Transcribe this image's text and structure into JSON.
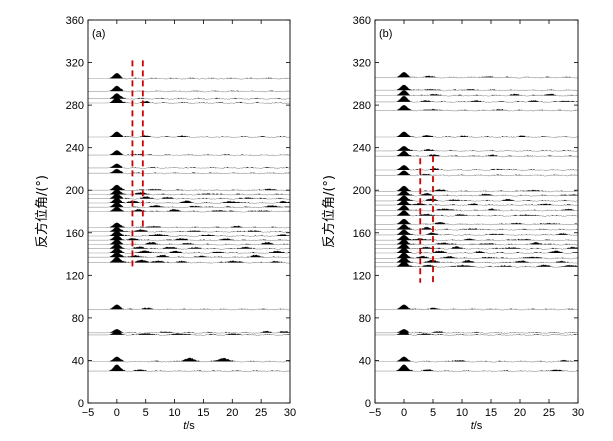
{
  "chart_data": [
    {
      "type": "line",
      "panel_label": "(a)",
      "xlabel": "t/s",
      "ylabel": "反方位角/(°)",
      "xlim": [
        -5,
        30
      ],
      "ylim": [
        0,
        360
      ],
      "xticks": [
        -5,
        0,
        5,
        10,
        15,
        20,
        25,
        30
      ],
      "yticks": [
        0,
        40,
        80,
        120,
        160,
        200,
        240,
        280,
        320,
        360
      ],
      "traces": [
        {
          "baz": 30,
          "events": [
            [
              0,
              11
            ],
            [
              4,
              2
            ]
          ]
        },
        {
          "baz": 39,
          "events": [
            [
              0,
              8
            ],
            [
              12.5,
              6
            ],
            [
              18.5,
              6
            ]
          ]
        },
        {
          "baz": 64,
          "events": [
            [
              0,
              7
            ],
            [
              5,
              2.5
            ],
            [
              11,
              2.5
            ],
            [
              20.5,
              2
            ]
          ]
        },
        {
          "baz": 66,
          "events": [
            [
              0,
              6
            ],
            [
              8,
              2
            ],
            [
              26,
              2
            ],
            [
              29,
              2
            ]
          ]
        },
        {
          "baz": 88,
          "events": [
            [
              0,
              8
            ],
            [
              5,
              2
            ]
          ]
        },
        {
          "baz": 132,
          "events": [
            [
              0,
              10
            ],
            [
              4,
              4
            ],
            [
              7,
              3
            ],
            [
              11,
              2
            ],
            [
              20,
              3
            ],
            [
              27,
              2
            ]
          ]
        },
        {
          "baz": 137,
          "events": [
            [
              0,
              9
            ],
            [
              3,
              3
            ],
            [
              8,
              3
            ],
            [
              15,
              2
            ],
            [
              24,
              3
            ]
          ]
        },
        {
          "baz": 141,
          "events": [
            [
              0,
              9
            ],
            [
              5,
              4
            ],
            [
              10,
              3
            ],
            [
              18,
              2
            ],
            [
              28,
              3
            ]
          ]
        },
        {
          "baz": 145,
          "events": [
            [
              0,
              9
            ],
            [
              4,
              3
            ],
            [
              9,
              3
            ],
            [
              14,
              2
            ],
            [
              22,
              3
            ]
          ]
        },
        {
          "baz": 149,
          "events": [
            [
              0,
              9
            ],
            [
              6,
              3
            ],
            [
              12,
              2
            ],
            [
              26,
              3
            ]
          ]
        },
        {
          "baz": 153,
          "events": [
            [
              0,
              9
            ],
            [
              3,
              3
            ],
            [
              11,
              3
            ],
            [
              19,
              2
            ]
          ]
        },
        {
          "baz": 157,
          "events": [
            [
              0,
              9
            ],
            [
              7,
              3
            ],
            [
              16,
              2
            ],
            [
              29,
              2
            ]
          ]
        },
        {
          "baz": 161,
          "events": [
            [
              0,
              8
            ],
            [
              4,
              3
            ],
            [
              13,
              2
            ],
            [
              23,
              2
            ]
          ]
        },
        {
          "baz": 165,
          "events": [
            [
              0,
              8
            ],
            [
              6,
              2
            ],
            [
              21,
              2
            ]
          ]
        },
        {
          "baz": 180,
          "events": [
            [
              0,
              8
            ],
            [
              4,
              3
            ],
            [
              10,
              3
            ],
            [
              18,
              2
            ],
            [
              25,
              2
            ]
          ]
        },
        {
          "baz": 184,
          "events": [
            [
              0,
              9
            ],
            [
              7,
              3
            ],
            [
              14,
              2
            ],
            [
              27,
              3
            ]
          ]
        },
        {
          "baz": 188,
          "events": [
            [
              0,
              9
            ],
            [
              3,
              3
            ],
            [
              12,
              3
            ],
            [
              20,
              3
            ],
            [
              29,
              2
            ]
          ]
        },
        {
          "baz": 192,
          "events": [
            [
              0,
              9
            ],
            [
              5,
              3
            ],
            [
              9,
              2
            ],
            [
              23,
              2
            ]
          ]
        },
        {
          "baz": 196,
          "events": [
            [
              0,
              9
            ],
            [
              4,
              3
            ],
            [
              16,
              2
            ]
          ]
        },
        {
          "baz": 200,
          "events": [
            [
              0,
              9
            ],
            [
              6,
              2
            ],
            [
              26,
              2
            ]
          ]
        },
        {
          "baz": 216,
          "events": [
            [
              0,
              7
            ]
          ]
        },
        {
          "baz": 221,
          "events": [
            [
              0,
              7
            ]
          ]
        },
        {
          "baz": 233,
          "events": [
            [
              0,
              8
            ],
            [
              4,
              1.5
            ]
          ]
        },
        {
          "baz": 250,
          "events": [
            [
              0,
              9
            ],
            [
              5,
              2
            ],
            [
              11,
              1.5
            ]
          ]
        },
        {
          "baz": 282,
          "events": [
            [
              0,
              10
            ],
            [
              5,
              2
            ]
          ]
        },
        {
          "baz": 286,
          "events": [
            [
              0,
              9
            ]
          ]
        },
        {
          "baz": 293,
          "events": [
            [
              0,
              9
            ]
          ]
        },
        {
          "baz": 305,
          "events": [
            [
              0,
              9
            ]
          ]
        }
      ],
      "marker_lines": [
        {
          "t": 2.7,
          "baz_min": 128,
          "baz_max": 322
        },
        {
          "t": 4.5,
          "baz_min": 162,
          "baz_max": 322
        }
      ],
      "colors": {
        "trace_fill": "#000000",
        "trace_line": "#9a9a9a",
        "marker": "#cc0000"
      }
    },
    {
      "type": "line",
      "panel_label": "(b)",
      "xlabel": "t/s",
      "ylabel": "反方位角/(°)",
      "xlim": [
        -5,
        30
      ],
      "ylim": [
        0,
        360
      ],
      "xticks": [
        -5,
        0,
        5,
        10,
        15,
        20,
        25,
        30
      ],
      "yticks": [
        0,
        40,
        80,
        120,
        160,
        200,
        240,
        280,
        320,
        360
      ],
      "traces": [
        {
          "baz": 30,
          "events": [
            [
              0,
              11
            ],
            [
              4,
              2
            ],
            [
              26,
              2
            ]
          ]
        },
        {
          "baz": 39,
          "events": [
            [
              0,
              8
            ],
            [
              9,
              2
            ],
            [
              28,
              2
            ]
          ]
        },
        {
          "baz": 64,
          "events": [
            [
              0,
              7
            ],
            [
              4,
              2
            ]
          ]
        },
        {
          "baz": 66,
          "events": [
            [
              0,
              6
            ],
            [
              6,
              1.5
            ]
          ]
        },
        {
          "baz": 88,
          "events": [
            [
              0,
              8
            ],
            [
              5,
              2
            ]
          ]
        },
        {
          "baz": 128,
          "events": [
            [
              0,
              10
            ],
            [
              4,
              3
            ],
            [
              10,
              3
            ],
            [
              17,
              2
            ],
            [
              24,
              3
            ],
            [
              29,
              3
            ]
          ]
        },
        {
          "baz": 132,
          "events": [
            [
              0,
              10
            ],
            [
              5,
              4
            ],
            [
              11,
              3
            ],
            [
              20,
              3
            ],
            [
              27,
              2
            ]
          ]
        },
        {
          "baz": 136,
          "events": [
            [
              0,
              10
            ],
            [
              3,
              3
            ],
            [
              8,
              3
            ],
            [
              15,
              2
            ],
            [
              22,
              3
            ]
          ]
        },
        {
          "baz": 141,
          "events": [
            [
              0,
              9
            ],
            [
              6,
              3
            ],
            [
              13,
              2
            ],
            [
              26,
              3
            ]
          ]
        },
        {
          "baz": 145,
          "events": [
            [
              0,
              9
            ],
            [
              4,
              3
            ],
            [
              9,
              3
            ],
            [
              18,
              2
            ],
            [
              29,
              2
            ]
          ]
        },
        {
          "baz": 149,
          "events": [
            [
              0,
              9
            ],
            [
              7,
              3
            ],
            [
              14,
              2
            ],
            [
              23,
              3
            ]
          ]
        },
        {
          "baz": 153,
          "events": [
            [
              0,
              9
            ],
            [
              3,
              3
            ],
            [
              11,
              2
            ],
            [
              20,
              2
            ]
          ]
        },
        {
          "baz": 158,
          "events": [
            [
              0,
              9
            ],
            [
              5,
              3
            ],
            [
              16,
              2
            ],
            [
              27,
              2
            ]
          ]
        },
        {
          "baz": 163,
          "events": [
            [
              0,
              9
            ],
            [
              4,
              3
            ],
            [
              12,
              2
            ]
          ]
        },
        {
          "baz": 168,
          "events": [
            [
              0,
              9
            ],
            [
              6,
              3
            ],
            [
              19,
              2
            ],
            [
              25,
              2
            ]
          ]
        },
        {
          "baz": 176,
          "events": [
            [
              0,
              9
            ],
            [
              4,
              3
            ],
            [
              10,
              2
            ],
            [
              21,
              2
            ]
          ]
        },
        {
          "baz": 181,
          "events": [
            [
              0,
              9
            ],
            [
              7,
              3
            ],
            [
              15,
              2
            ],
            [
              28,
              2
            ]
          ]
        },
        {
          "baz": 186,
          "events": [
            [
              0,
              9
            ],
            [
              3,
              3
            ],
            [
              12,
              2
            ],
            [
              24,
              2
            ]
          ]
        },
        {
          "baz": 190,
          "events": [
            [
              0,
              9
            ],
            [
              5,
              3
            ],
            [
              9,
              2
            ],
            [
              18,
              2
            ]
          ]
        },
        {
          "baz": 195,
          "events": [
            [
              0,
              9
            ],
            [
              4,
              3
            ],
            [
              14,
              2
            ],
            [
              29,
              2
            ]
          ]
        },
        {
          "baz": 199,
          "events": [
            [
              0,
              9
            ],
            [
              6,
              3
            ],
            [
              22,
              2
            ]
          ]
        },
        {
          "baz": 214,
          "events": [
            [
              0,
              8
            ],
            [
              4,
              2
            ]
          ]
        },
        {
          "baz": 219,
          "events": [
            [
              0,
              8
            ],
            [
              5,
              2
            ],
            [
              17,
              1.5
            ]
          ]
        },
        {
          "baz": 232,
          "events": [
            [
              0,
              9
            ],
            [
              5,
              2
            ],
            [
              15,
              1.5
            ]
          ]
        },
        {
          "baz": 237,
          "events": [
            [
              0,
              8
            ],
            [
              4,
              2
            ]
          ]
        },
        {
          "baz": 250,
          "events": [
            [
              0,
              9
            ],
            [
              4,
              2
            ],
            [
              10,
              1.5
            ],
            [
              20,
              1.5
            ]
          ]
        },
        {
          "baz": 275,
          "events": [
            [
              0,
              9
            ],
            [
              5,
              2
            ],
            [
              16,
              1.5
            ]
          ]
        },
        {
          "baz": 283,
          "events": [
            [
              0,
              10
            ],
            [
              4,
              2
            ],
            [
              12,
              2
            ],
            [
              22,
              2
            ],
            [
              28,
              2
            ]
          ]
        },
        {
          "baz": 289,
          "events": [
            [
              0,
              9
            ],
            [
              5,
              2
            ],
            [
              19,
              1.5
            ],
            [
              25,
              2
            ]
          ]
        },
        {
          "baz": 294,
          "events": [
            [
              0,
              9
            ],
            [
              4,
              2
            ],
            [
              11,
              1.5
            ]
          ]
        },
        {
          "baz": 306,
          "events": [
            [
              0,
              9
            ],
            [
              4,
              2
            ],
            [
              14,
              1.5
            ]
          ]
        }
      ],
      "marker_lines": [
        {
          "t": 2.8,
          "baz_min": 113,
          "baz_max": 230
        },
        {
          "t": 5.0,
          "baz_min": 113,
          "baz_max": 232
        }
      ],
      "colors": {
        "trace_fill": "#000000",
        "trace_line": "#9a9a9a",
        "marker": "#cc0000"
      }
    }
  ]
}
